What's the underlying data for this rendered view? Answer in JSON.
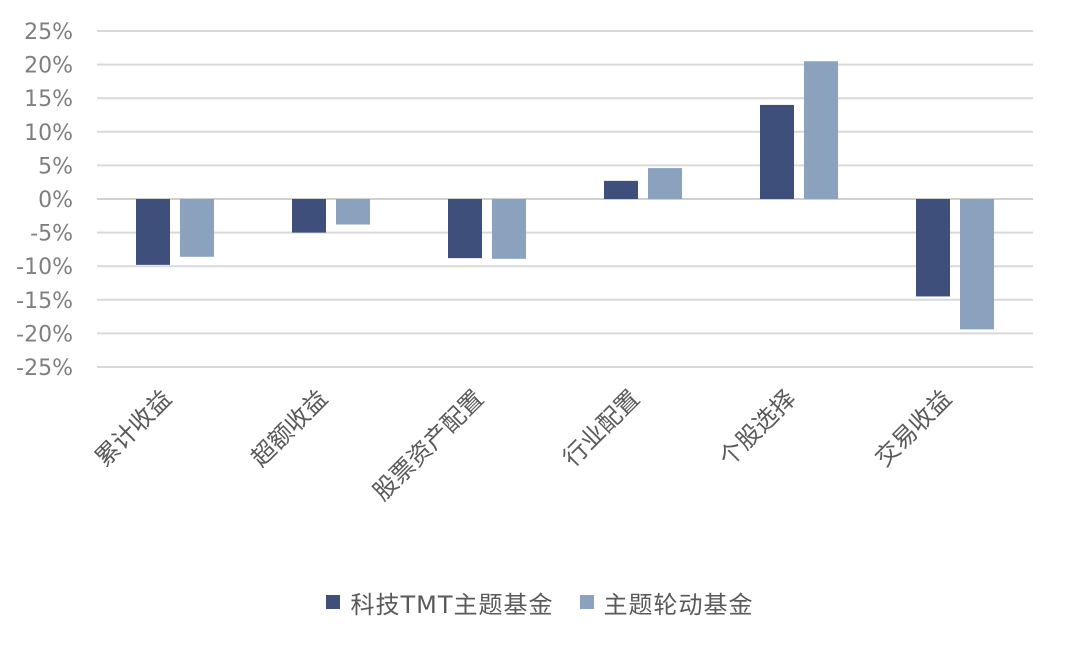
{
  "chart_data": {
    "type": "bar",
    "categories": [
      "累计收益",
      "超额收益",
      "股票资产配置",
      "行业配置",
      "个股选择",
      "交易收益"
    ],
    "series": [
      {
        "name": "科技TMT主题基金",
        "color": "#3d4f7a",
        "values": [
          -9.8,
          -5.0,
          -8.8,
          2.7,
          14.0,
          -14.5
        ]
      },
      {
        "name": "主题轮动基金",
        "color": "#8aa2bd",
        "values": [
          -8.6,
          -3.8,
          -8.9,
          4.6,
          20.5,
          -19.4
        ]
      }
    ],
    "ylim": [
      -25,
      25
    ],
    "yticks": [
      25,
      20,
      15,
      10,
      5,
      0,
      -5,
      -10,
      -15,
      -20,
      -25
    ],
    "ytick_suffix": "%",
    "grid": true,
    "legend_position": "bottom",
    "title": "",
    "xlabel": "",
    "ylabel": ""
  }
}
